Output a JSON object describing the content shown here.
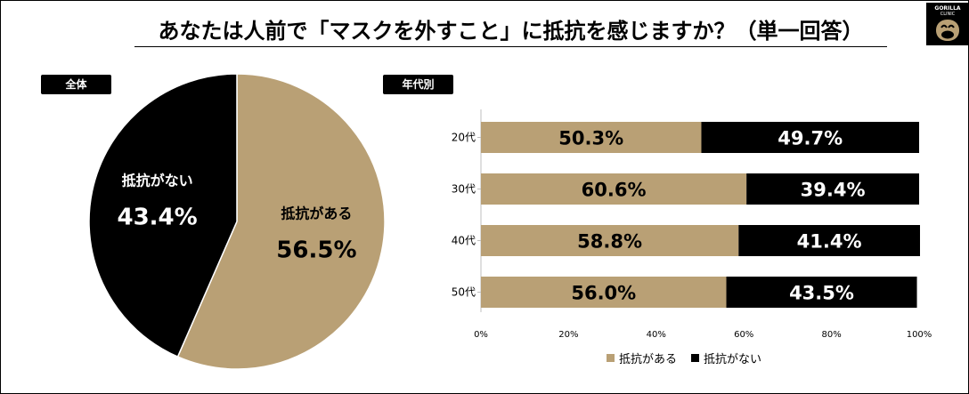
{
  "title": "あなたは人前で「マスクを外すこと」に抵抗を感じますか？（単一回答）",
  "logo": {
    "line1": "GORILLA",
    "line2": "CLINIC",
    "icon": "gorilla-logo-icon"
  },
  "colors": {
    "yes": "#b9a075",
    "no": "#000000"
  },
  "chart_data": [
    {
      "type": "pie",
      "section_label": "全体",
      "slices": [
        {
          "label": "抵抗がある",
          "value": 56.5,
          "display": "56.5%",
          "color": "#b9a075"
        },
        {
          "label": "抵抗がない",
          "value": 43.4,
          "display": "43.4%",
          "color": "#000000"
        }
      ]
    },
    {
      "type": "bar",
      "orientation": "horizontal",
      "stacked": true,
      "section_label": "年代別",
      "categories": [
        "20代",
        "30代",
        "40代",
        "50代"
      ],
      "series": [
        {
          "name": "抵抗がある",
          "color": "#b9a075",
          "values": [
            50.3,
            60.6,
            58.8,
            56.0
          ],
          "labels": [
            "50.3%",
            "60.6%",
            "58.8%",
            "56.0%"
          ]
        },
        {
          "name": "抵抗がない",
          "color": "#000000",
          "values": [
            49.7,
            39.4,
            41.4,
            43.5
          ],
          "labels": [
            "49.7%",
            "39.4%",
            "41.4%",
            "43.5%"
          ]
        }
      ],
      "xlim": [
        0,
        100
      ],
      "xticks": [
        "0%",
        "20%",
        "40%",
        "60%",
        "80%",
        "100%"
      ],
      "legend": [
        "抵抗がある",
        "抵抗がない"
      ],
      "legend_position": "bottom"
    }
  ]
}
